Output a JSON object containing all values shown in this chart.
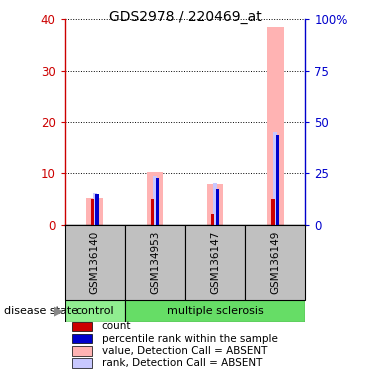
{
  "title": "GDS2978 / 220469_at",
  "samples": [
    "GSM136140",
    "GSM134953",
    "GSM136147",
    "GSM136149"
  ],
  "bar_data": {
    "GSM136140": {
      "value_absent": 5.2,
      "rank_absent": 6.2,
      "count": 5.0,
      "pct_rank": 6.0
    },
    "GSM134953": {
      "value_absent": 10.2,
      "rank_absent": 9.5,
      "count": 5.0,
      "pct_rank": 9.0
    },
    "GSM136147": {
      "value_absent": 8.0,
      "rank_absent": 8.2,
      "count": 2.0,
      "pct_rank": 7.0
    },
    "GSM136149": {
      "value_absent": 38.5,
      "rank_absent": 18.0,
      "count": 5.0,
      "pct_rank": 17.5
    }
  },
  "ylim": [
    0,
    40
  ],
  "y2lim": [
    0,
    100
  ],
  "yticks_left": [
    0,
    10,
    20,
    30,
    40
  ],
  "yticks_right": [
    0,
    25,
    50,
    75,
    100
  ],
  "ytick_labels_right": [
    "0",
    "25",
    "50",
    "75",
    "100%"
  ],
  "color_value_absent": "#ffb3b3",
  "color_rank_absent": "#c8c8ff",
  "color_count": "#cc0000",
  "color_pct_rank": "#0000cc",
  "control_label": "control",
  "ms_label": "multiple sclerosis",
  "disease_label": "disease state",
  "legend_items": [
    {
      "label": "count",
      "color": "#cc0000"
    },
    {
      "label": "percentile rank within the sample",
      "color": "#0000cc"
    },
    {
      "label": "value, Detection Call = ABSENT",
      "color": "#ffb3b3"
    },
    {
      "label": "rank, Detection Call = ABSENT",
      "color": "#c8c8ff"
    }
  ],
  "control_bg": "#90ee90",
  "ms_bg": "#66dd66",
  "sample_row_bg": "#c0c0c0",
  "title_fontsize": 10,
  "axis_label_fontsize": 8.5,
  "tick_fontsize": 8.5,
  "sample_fontsize": 7.5,
  "legend_fontsize": 7.5,
  "disease_fontsize": 8
}
